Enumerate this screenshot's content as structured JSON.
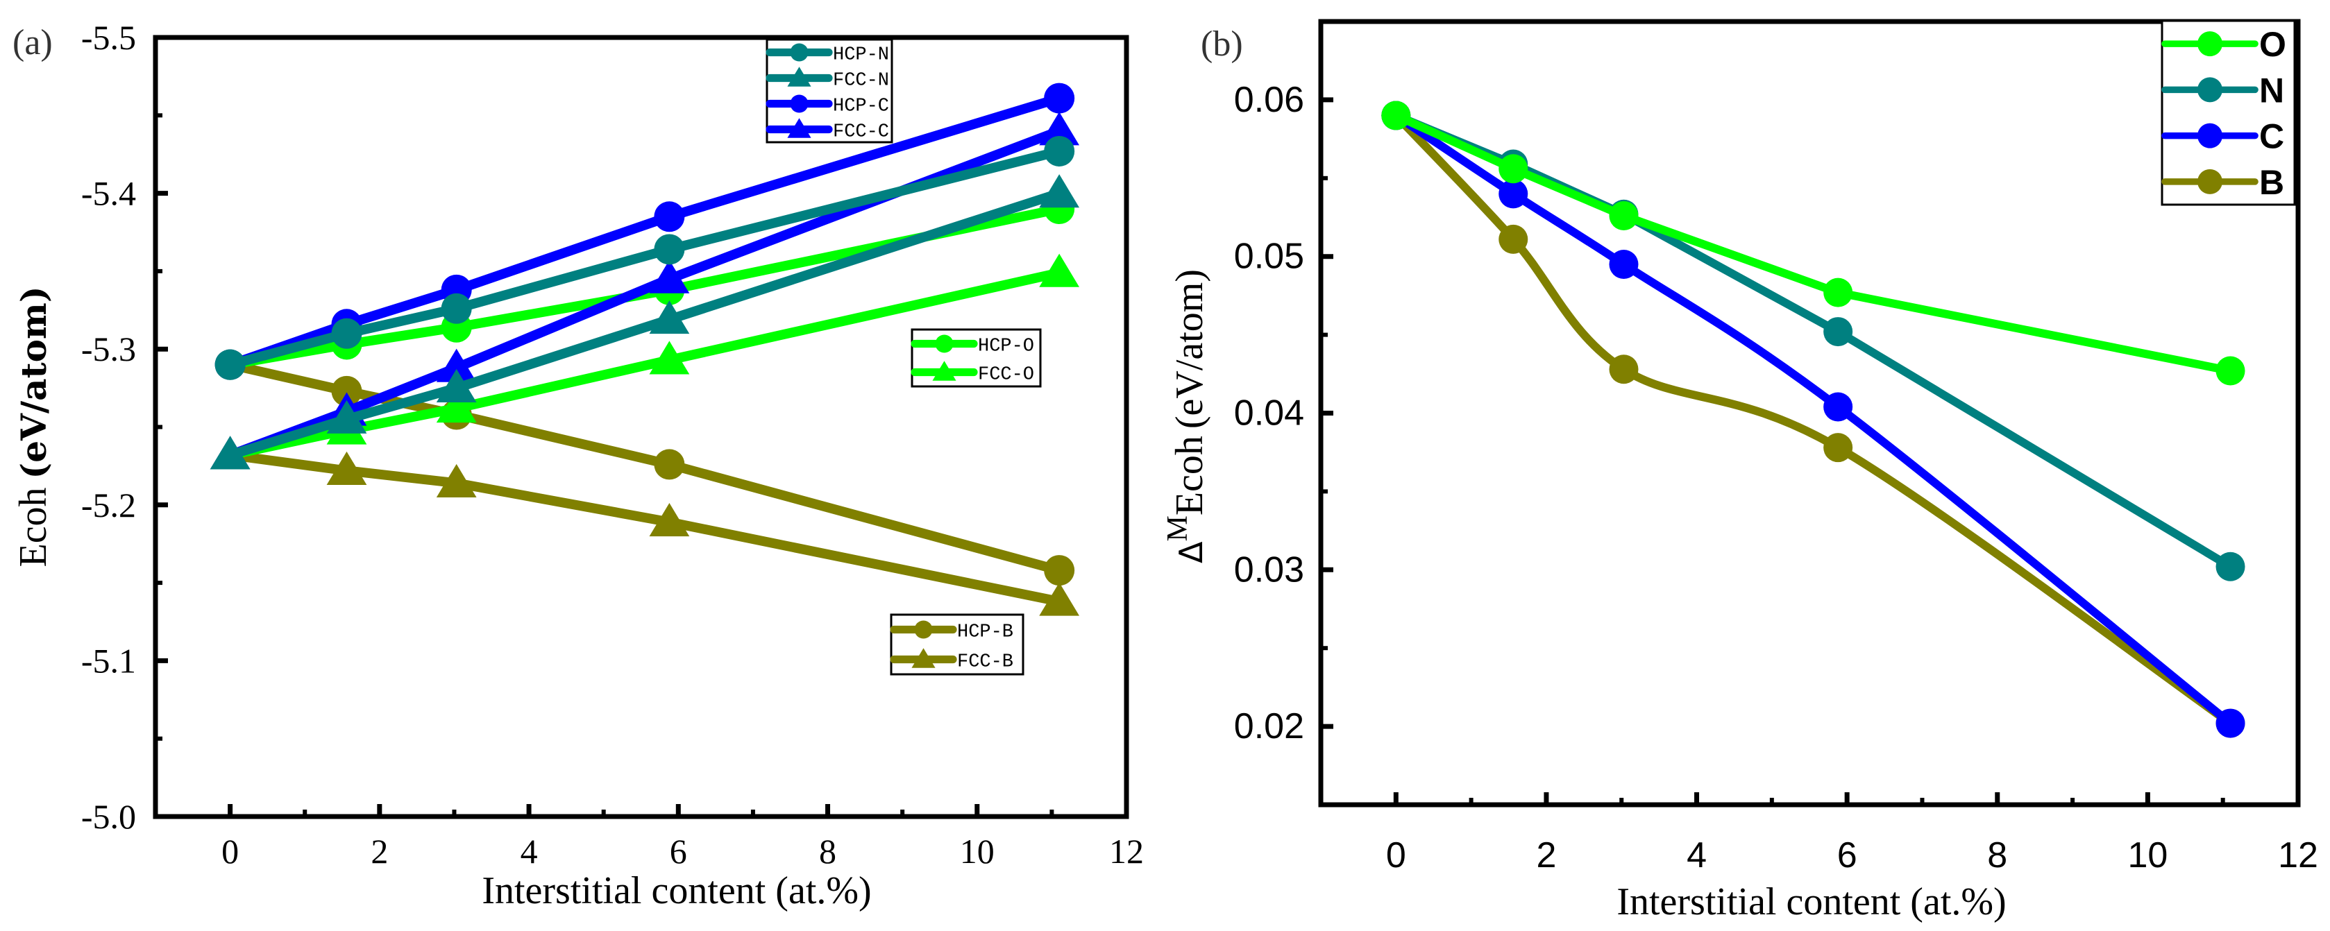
{
  "chart_data": [
    {
      "type": "line",
      "panel_label": "(a)",
      "title": "",
      "xlabel": "Interstitial content (at.%)",
      "ylabel": "Ecoh",
      "ylabel_unit": "(eV/atom)",
      "xlim": [
        -1,
        12
      ],
      "ylim": [
        -5.5,
        -5.0
      ],
      "y_reversed": true,
      "grid": false,
      "xticks": [
        0,
        2,
        4,
        6,
        8,
        10,
        12
      ],
      "xtick_labels": [
        "0",
        "2",
        "4",
        "6",
        "8",
        "10",
        "12"
      ],
      "yticks": [
        -5.5,
        -5.4,
        -5.3,
        -5.2,
        -5.1,
        -5.0
      ],
      "ytick_labels": [
        "-5.5",
        "-5.4",
        "-5.3",
        "-5.2",
        "-5.1",
        "-5.0"
      ],
      "series": [
        {
          "name": "HCP-N",
          "color": "#008080",
          "marker": "circle",
          "x": [
            0,
            1.56,
            3.03,
            5.88,
            11.1
          ],
          "y": [
            -5.29,
            -5.31,
            -5.326,
            -5.364,
            -5.427
          ]
        },
        {
          "name": "FCC-N",
          "color": "#008080",
          "marker": "triangle",
          "x": [
            0,
            1.56,
            3.03,
            5.88,
            11.1
          ],
          "y": [
            -5.232,
            -5.255,
            -5.275,
            -5.319,
            -5.4
          ]
        },
        {
          "name": "HCP-C",
          "color": "#0000ff",
          "marker": "circle",
          "x": [
            0,
            1.56,
            3.03,
            5.88,
            11.1
          ],
          "y": [
            -5.29,
            -5.316,
            -5.338,
            -5.385,
            -5.461
          ]
        },
        {
          "name": "FCC-C",
          "color": "#0000ff",
          "marker": "triangle",
          "x": [
            0,
            1.56,
            3.03,
            5.88,
            11.1
          ],
          "y": [
            -5.232,
            -5.26,
            -5.288,
            -5.345,
            -5.44
          ]
        },
        {
          "name": "HCP-O",
          "color": "#00ff00",
          "marker": "circle",
          "x": [
            0,
            1.56,
            3.03,
            5.88,
            11.1
          ],
          "y": [
            -5.29,
            -5.303,
            -5.314,
            -5.338,
            -5.39
          ]
        },
        {
          "name": "FCC-O",
          "color": "#00ff00",
          "marker": "triangle",
          "x": [
            0,
            1.56,
            3.03,
            5.88,
            11.1
          ],
          "y": [
            -5.232,
            -5.248,
            -5.262,
            -5.293,
            -5.349
          ]
        },
        {
          "name": "HCP-B",
          "color": "#808000",
          "marker": "circle",
          "x": [
            0,
            1.56,
            3.03,
            5.88,
            11.1
          ],
          "y": [
            -5.29,
            -5.273,
            -5.258,
            -5.226,
            -5.158
          ]
        },
        {
          "name": "FCC-B",
          "color": "#808000",
          "marker": "triangle",
          "x": [
            0,
            1.56,
            3.03,
            5.88,
            11.1
          ],
          "y": [
            -5.232,
            -5.222,
            -5.214,
            -5.189,
            -5.138
          ]
        }
      ],
      "legends": [
        {
          "placement": "top-center",
          "entries": [
            "HCP-N",
            "FCC-N",
            "HCP-C",
            "FCC-C"
          ]
        },
        {
          "placement": "center-right",
          "entries": [
            "HCP-O",
            "FCC-O"
          ]
        },
        {
          "placement": "lower-right",
          "entries": [
            "HCP-B",
            "FCC-B"
          ]
        }
      ]
    },
    {
      "type": "line",
      "panel_label": "(b)",
      "title": "",
      "xlabel": "Interstitial content (at.%)",
      "ylabel_delta": "Δ",
      "ylabel_sup": "M",
      "ylabel": "Ecoh",
      "ylabel_unit": "(eV/atom)",
      "xlim": [
        -1,
        12
      ],
      "ylim": [
        0.015,
        0.065
      ],
      "grid": false,
      "xticks": [
        0,
        2,
        4,
        6,
        8,
        10,
        12
      ],
      "xtick_labels": [
        "0",
        "2",
        "4",
        "6",
        "8",
        "10",
        "12"
      ],
      "yticks": [
        0.02,
        0.03,
        0.04,
        0.05,
        0.06
      ],
      "ytick_labels": [
        "0.02",
        "0.03",
        "0.04",
        "0.05",
        "0.06"
      ],
      "series": [
        {
          "name": "O",
          "color": "#00ff00",
          "marker": "circle",
          "x": [
            0,
            1.56,
            3.03,
            5.88,
            11.1
          ],
          "y": [
            0.059,
            0.0556,
            0.0526,
            0.0477,
            0.0427
          ]
        },
        {
          "name": "N",
          "color": "#008080",
          "marker": "circle",
          "x": [
            0,
            1.56,
            3.03,
            5.88,
            11.1
          ],
          "y": [
            0.059,
            0.0559,
            0.0527,
            0.0452,
            0.0302
          ]
        },
        {
          "name": "C",
          "color": "#0000ff",
          "marker": "circle",
          "x": [
            0,
            1.56,
            3.03,
            5.88,
            11.1
          ],
          "y": [
            0.059,
            0.054,
            0.0495,
            0.0404,
            0.0202
          ]
        },
        {
          "name": "B",
          "color": "#808000",
          "marker": "circle",
          "x": [
            0,
            1.56,
            3.03,
            5.88,
            11.1
          ],
          "y": [
            0.059,
            0.0511,
            0.0428,
            0.0378,
            0.0202
          ]
        }
      ],
      "legends": [
        {
          "placement": "top-right",
          "entries": [
            "O",
            "N",
            "C",
            "B"
          ]
        }
      ]
    }
  ]
}
